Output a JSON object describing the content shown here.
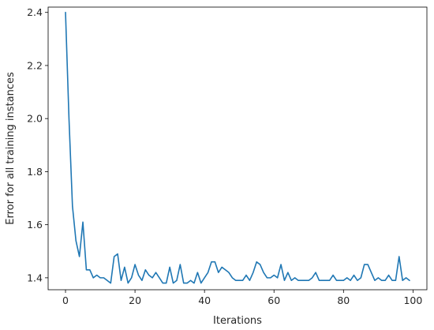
{
  "chart_data": {
    "type": "line",
    "title": "",
    "xlabel": "Iterations",
    "ylabel": "Error for all training instances",
    "xlim": [
      -5,
      104
    ],
    "ylim": [
      1.355,
      2.42
    ],
    "xticks": [
      0,
      20,
      40,
      60,
      80,
      100
    ],
    "yticks": [
      1.4,
      1.6,
      1.8,
      2.0,
      2.2,
      2.4
    ],
    "ytick_labels": [
      "1.4",
      "1.6",
      "1.8",
      "2.0",
      "2.2",
      "2.4"
    ],
    "grid": false,
    "legend": "none",
    "series": [
      {
        "color": "#1f77b4",
        "x": [
          0,
          1,
          2,
          3,
          4,
          5,
          6,
          7,
          8,
          9,
          10,
          11,
          12,
          13,
          14,
          15,
          16,
          17,
          18,
          19,
          20,
          21,
          22,
          23,
          24,
          25,
          26,
          27,
          28,
          29,
          30,
          31,
          32,
          33,
          34,
          35,
          36,
          37,
          38,
          39,
          40,
          41,
          42,
          43,
          44,
          45,
          46,
          47,
          48,
          49,
          50,
          51,
          52,
          53,
          54,
          55,
          56,
          57,
          58,
          59,
          60,
          61,
          62,
          63,
          64,
          65,
          66,
          67,
          68,
          69,
          70,
          71,
          72,
          73,
          74,
          75,
          76,
          77,
          78,
          79,
          80,
          81,
          82,
          83,
          84,
          85,
          86,
          87,
          88,
          89,
          90,
          91,
          92,
          93,
          94,
          95,
          96,
          97,
          98,
          99
        ],
        "values": [
          2.4,
          2.0,
          1.67,
          1.54,
          1.48,
          1.61,
          1.43,
          1.43,
          1.4,
          1.41,
          1.4,
          1.4,
          1.39,
          1.38,
          1.48,
          1.49,
          1.39,
          1.44,
          1.38,
          1.4,
          1.45,
          1.41,
          1.39,
          1.43,
          1.41,
          1.4,
          1.42,
          1.4,
          1.38,
          1.38,
          1.44,
          1.38,
          1.39,
          1.45,
          1.38,
          1.38,
          1.39,
          1.38,
          1.42,
          1.38,
          1.4,
          1.42,
          1.46,
          1.46,
          1.42,
          1.44,
          1.43,
          1.42,
          1.4,
          1.39,
          1.39,
          1.39,
          1.41,
          1.39,
          1.42,
          1.46,
          1.45,
          1.42,
          1.4,
          1.4,
          1.41,
          1.4,
          1.45,
          1.39,
          1.42,
          1.39,
          1.4,
          1.39,
          1.39,
          1.39,
          1.39,
          1.4,
          1.42,
          1.39,
          1.39,
          1.39,
          1.39,
          1.41,
          1.39,
          1.39,
          1.39,
          1.4,
          1.39,
          1.41,
          1.39,
          1.4,
          1.45,
          1.45,
          1.42,
          1.39,
          1.4,
          1.39,
          1.39,
          1.41,
          1.39,
          1.39,
          1.48,
          1.39,
          1.4,
          1.39
        ]
      }
    ]
  }
}
